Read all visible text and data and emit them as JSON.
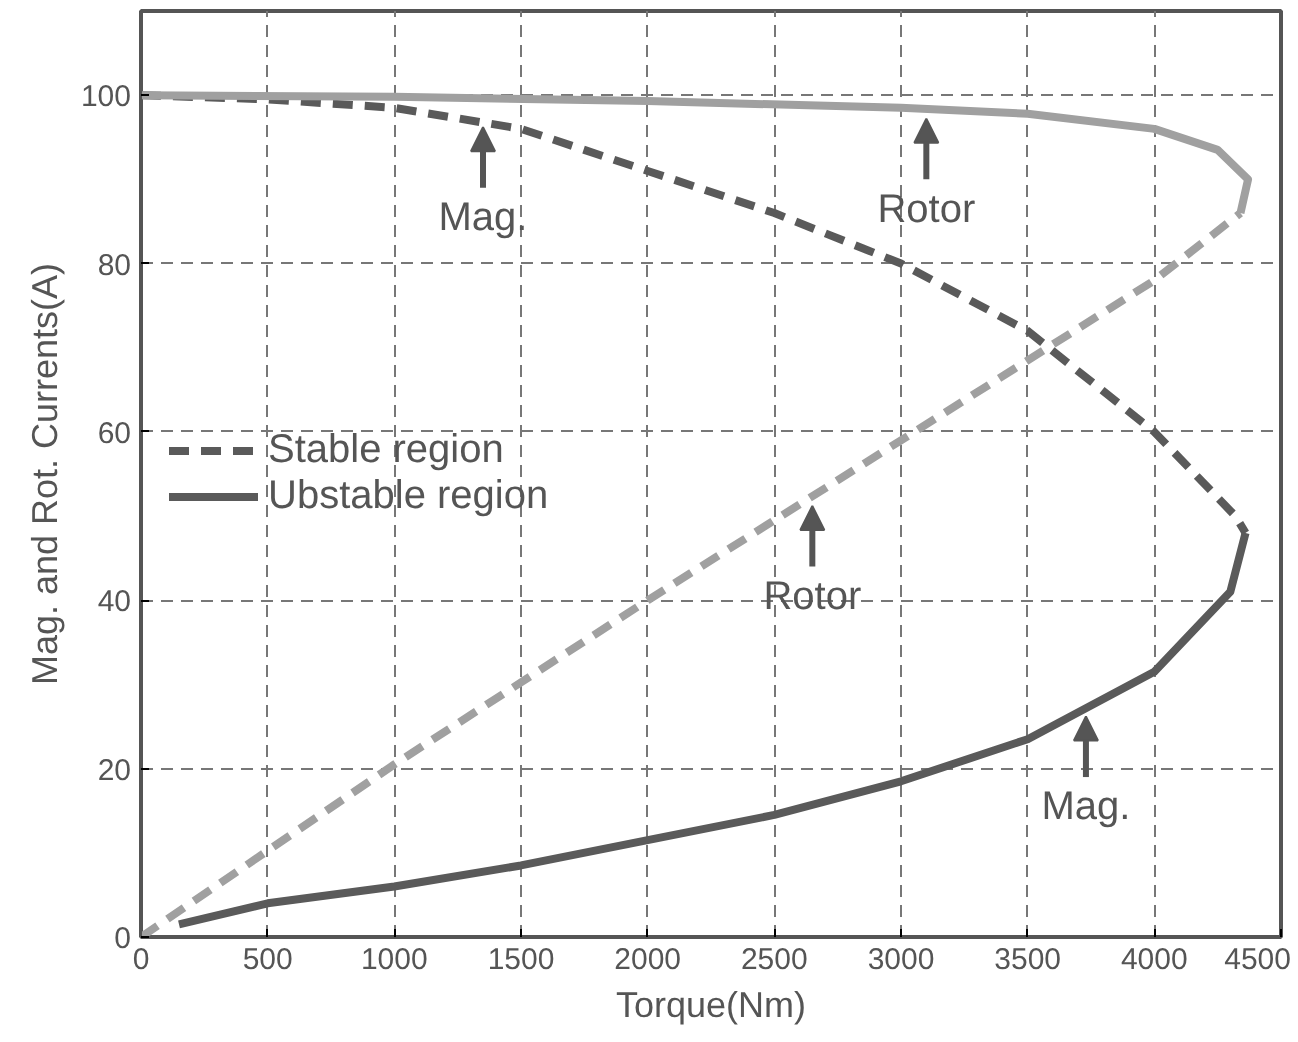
{
  "chart_data": {
    "type": "line",
    "xlabel": "Torque(Nm)",
    "ylabel": "Mag. and Rot. Currents(A)",
    "xlim": [
      0,
      4500
    ],
    "ylim": [
      0,
      110
    ],
    "xticks": [
      0,
      500,
      1000,
      1500,
      2000,
      2500,
      3000,
      3500,
      4000,
      4500
    ],
    "yticks": [
      0,
      20,
      40,
      60,
      80,
      100
    ],
    "grid": true,
    "legend": "left",
    "series": [
      {
        "name": "Stable region",
        "color": "#5a5a5a",
        "line_style": "dashed",
        "x": [
          0,
          500,
          1000,
          1500,
          2000,
          2500,
          3000,
          3500,
          4000,
          4320,
          4360
        ],
        "values": [
          100,
          99.5,
          98.5,
          96,
          91,
          86,
          80,
          72,
          60,
          50,
          48
        ]
      },
      {
        "name": "Ubstable region",
        "color": "#5a5a5a",
        "line_style": "solid",
        "x": [
          4360,
          4300,
          4000,
          3500,
          3000,
          2500,
          2000,
          1500,
          1000,
          500,
          150
        ],
        "values": [
          48,
          41,
          31.5,
          23.5,
          18.5,
          14.5,
          11.5,
          8.5,
          6,
          4,
          1.5
        ]
      },
      {
        "color": "#a0a0a0",
        "line_style": "dashed",
        "x": [
          0,
          1000,
          2000,
          3000,
          4000,
          4340
        ],
        "values": [
          0,
          20.5,
          40,
          59,
          78,
          86
        ]
      },
      {
        "color": "#a0a0a0",
        "line_style": "solid",
        "x": [
          4340,
          4370,
          4250,
          4000,
          3500,
          3000,
          2000,
          1000,
          0
        ],
        "values": [
          86,
          90,
          93.5,
          96,
          97.8,
          98.5,
          99.3,
          99.8,
          100
        ]
      }
    ],
    "annotations": [
      {
        "text": "Mag.",
        "x": 1350,
        "y": 97
      },
      {
        "text": "Rotor",
        "x": 3100,
        "y": 98
      },
      {
        "text": "Rotor",
        "x": 2650,
        "y": 52
      },
      {
        "text": "Mag.",
        "x": 3730,
        "y": 27
      }
    ]
  }
}
